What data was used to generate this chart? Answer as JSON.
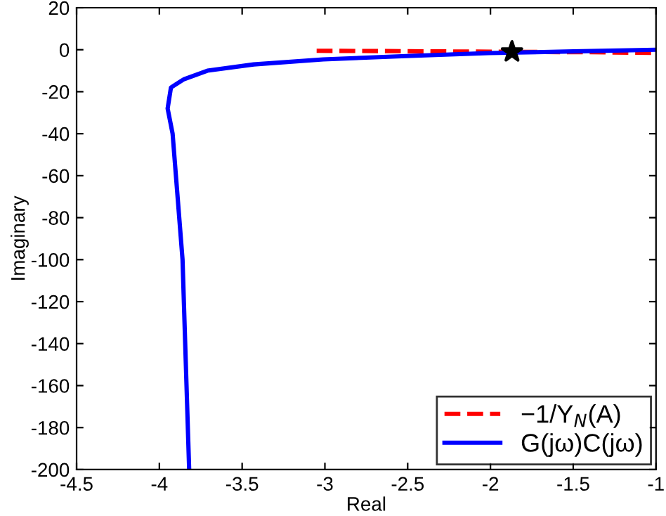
{
  "chart_data": {
    "type": "line",
    "xlabel": "Real",
    "ylabel": "Imaginary",
    "xlim": [
      -4.5,
      -1
    ],
    "ylim": [
      -200,
      20
    ],
    "xticks": [
      -4.5,
      -4,
      -3.5,
      -3,
      -2.5,
      -2,
      -1.5,
      -1
    ],
    "yticks": [
      20,
      0,
      -20,
      -40,
      -60,
      -80,
      -100,
      -120,
      -140,
      -160,
      -180,
      -200
    ],
    "grid": false,
    "legend": "bottom right",
    "series": [
      {
        "name": "−1/Y$_{N}$(A)",
        "color": "#ff0000",
        "line_style": "dashed",
        "marker": "none",
        "x": [
          -3.05,
          -2.5,
          -1.4,
          -1
        ],
        "values": [
          -0.5,
          -0.7,
          -1.2,
          -1.5
        ]
      },
      {
        "name": "G(jω)C(jω)",
        "color": "#0000ff",
        "line_style": "solid",
        "marker": "none",
        "x": [
          -3.82,
          -3.86,
          -3.92,
          -3.95,
          -3.93,
          -3.85,
          -3.71,
          -3.43,
          -3.01,
          -2.51,
          -2.01,
          -1.5,
          -1
        ],
        "values": [
          -200,
          -100,
          -40,
          -28,
          -18,
          -14,
          -10,
          -7,
          -4.6,
          -3,
          -1.6,
          -0.8,
          0
        ]
      },
      {
        "type": "scatter",
        "color": "#000000",
        "marker": "star",
        "x": [
          -1.87
        ],
        "values": [
          -1
        ]
      }
    ]
  }
}
